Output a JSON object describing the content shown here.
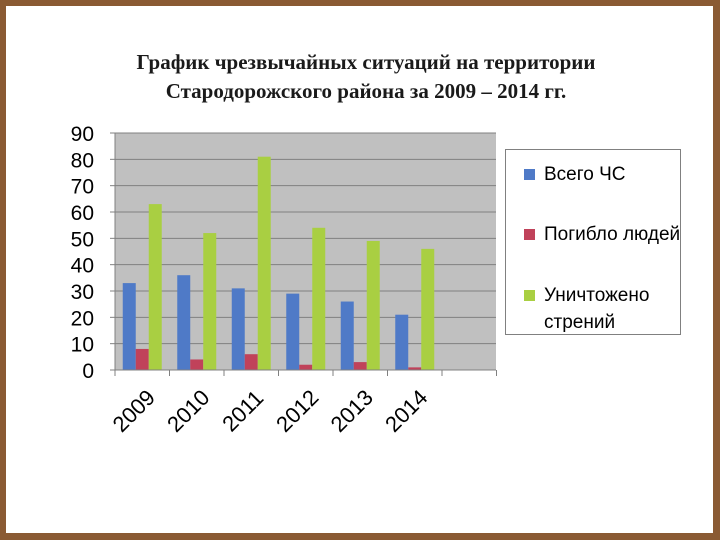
{
  "title_lines": [
    "График чрезвычайных ситуаций на территории",
    "Стародорожского района за 2009 – 2014 гг."
  ],
  "colors": {
    "frame": "#8a5a33",
    "plot_bg": "#c0c0c0",
    "series": [
      "#4f7ac7",
      "#c0425a",
      "#a9cf42"
    ]
  },
  "chart_data": {
    "type": "bar",
    "categories": [
      "2009",
      "2010",
      "2011",
      "2012",
      "2013",
      "2014"
    ],
    "series": [
      {
        "name": "Всего ЧС",
        "values": [
          33,
          36,
          31,
          29,
          26,
          21
        ]
      },
      {
        "name": "Погибло людей",
        "values": [
          8,
          4,
          6,
          2,
          3,
          1
        ]
      },
      {
        "name": "Уничтожено стрений",
        "values": [
          63,
          52,
          81,
          54,
          49,
          46
        ]
      }
    ],
    "yticks": [
      "0",
      "10",
      "20",
      "30",
      "40",
      "50",
      "60",
      "70",
      "80",
      "90"
    ],
    "ylim": [
      0,
      90
    ],
    "grid": true,
    "legend": "right"
  }
}
